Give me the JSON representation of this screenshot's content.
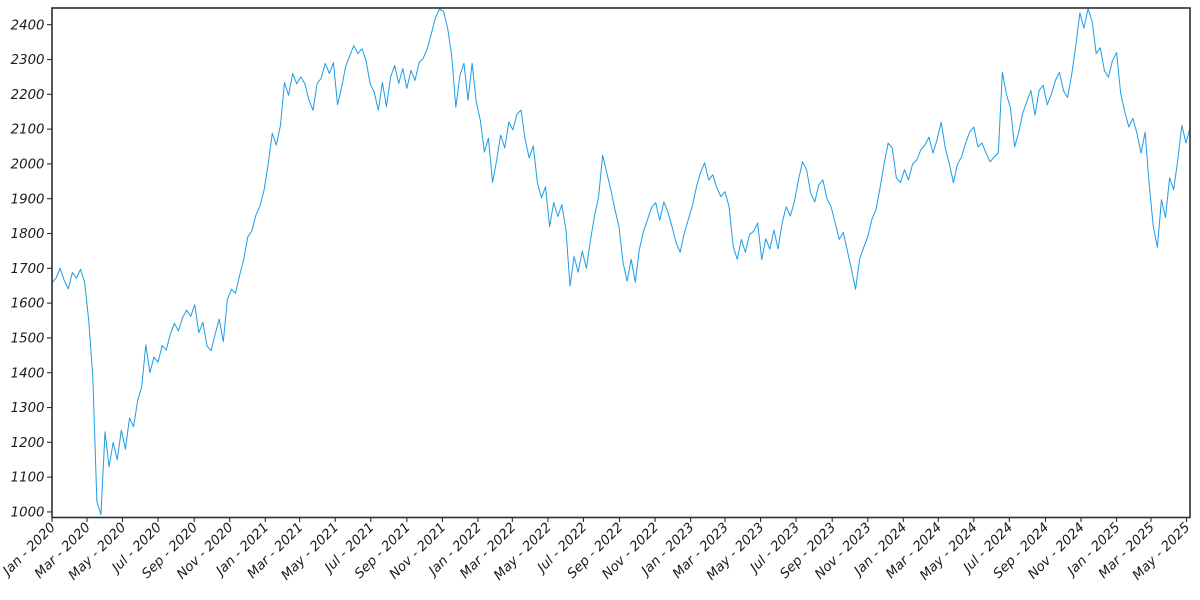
{
  "figure": {
    "background": "#ffffff",
    "spine_color": "#2e2e2e",
    "tick_color": "#2e2e2e",
    "label_color": "#1a1a1a",
    "title": ""
  },
  "chart_data": {
    "type": "line",
    "title": "",
    "xlabel": "",
    "ylabel": "",
    "grid": false,
    "legend": "none",
    "line_color": "#1e9ce6",
    "line_width": 1,
    "ylim": [
      984,
      2448
    ],
    "y_ticks": [
      1000,
      1100,
      1200,
      1300,
      1400,
      1500,
      1600,
      1700,
      1800,
      1900,
      2000,
      2100,
      2200,
      2300,
      2400
    ],
    "x_ticks": [
      {
        "label": "Jan - 2020",
        "date": "2020-01-01"
      },
      {
        "label": "Mar - 2020",
        "date": "2020-03-01"
      },
      {
        "label": "May - 2020",
        "date": "2020-05-01"
      },
      {
        "label": "Jul - 2020",
        "date": "2020-07-01"
      },
      {
        "label": "Sep - 2020",
        "date": "2020-09-01"
      },
      {
        "label": "Nov - 2020",
        "date": "2020-11-01"
      },
      {
        "label": "Jan - 2021",
        "date": "2021-01-01"
      },
      {
        "label": "Mar - 2021",
        "date": "2021-03-01"
      },
      {
        "label": "May - 2021",
        "date": "2021-05-01"
      },
      {
        "label": "Jul - 2021",
        "date": "2021-07-01"
      },
      {
        "label": "Sep - 2021",
        "date": "2021-09-01"
      },
      {
        "label": "Nov - 2021",
        "date": "2021-11-01"
      },
      {
        "label": "Jan - 2022",
        "date": "2022-01-01"
      },
      {
        "label": "Mar - 2022",
        "date": "2022-03-01"
      },
      {
        "label": "May - 2022",
        "date": "2022-05-01"
      },
      {
        "label": "Jul - 2022",
        "date": "2022-07-01"
      },
      {
        "label": "Sep - 2022",
        "date": "2022-09-01"
      },
      {
        "label": "Nov - 2022",
        "date": "2022-11-01"
      },
      {
        "label": "Jan - 2023",
        "date": "2023-01-01"
      },
      {
        "label": "Mar - 2023",
        "date": "2023-03-01"
      },
      {
        "label": "May - 2023",
        "date": "2023-05-01"
      },
      {
        "label": "Jul - 2023",
        "date": "2023-07-01"
      },
      {
        "label": "Sep - 2023",
        "date": "2023-09-01"
      },
      {
        "label": "Nov - 2023",
        "date": "2023-11-01"
      },
      {
        "label": "Jan - 2024",
        "date": "2024-01-01"
      },
      {
        "label": "Mar - 2024",
        "date": "2024-03-01"
      },
      {
        "label": "May - 2024",
        "date": "2024-05-01"
      },
      {
        "label": "Jul - 2024",
        "date": "2024-07-01"
      },
      {
        "label": "Sep - 2024",
        "date": "2024-09-01"
      },
      {
        "label": "Nov - 2024",
        "date": "2024-11-01"
      },
      {
        "label": "Jan - 2025",
        "date": "2025-01-01"
      },
      {
        "label": "Mar - 2025",
        "date": "2025-03-01"
      },
      {
        "label": "May - 2025",
        "date": "2025-05-01"
      }
    ],
    "series": [
      {
        "name": "value",
        "start_date": "2020-01-01",
        "step_days": 7,
        "values": [
          1658,
          1672,
          1700,
          1665,
          1641,
          1688,
          1672,
          1697,
          1660,
          1550,
          1390,
          1030,
          992,
          1230,
          1130,
          1200,
          1150,
          1235,
          1180,
          1270,
          1245,
          1320,
          1360,
          1480,
          1400,
          1445,
          1430,
          1478,
          1465,
          1510,
          1542,
          1520,
          1558,
          1580,
          1562,
          1595,
          1515,
          1545,
          1477,
          1463,
          1511,
          1554,
          1489,
          1611,
          1640,
          1628,
          1680,
          1725,
          1790,
          1808,
          1853,
          1880,
          1925,
          2000,
          2088,
          2054,
          2110,
          2234,
          2197,
          2260,
          2230,
          2250,
          2230,
          2183,
          2154,
          2231,
          2246,
          2289,
          2260,
          2291,
          2170,
          2220,
          2280,
          2311,
          2340,
          2317,
          2331,
          2297,
          2230,
          2206,
          2154,
          2234,
          2165,
          2249,
          2283,
          2231,
          2274,
          2217,
          2269,
          2240,
          2291,
          2303,
          2331,
          2374,
          2420,
          2445,
          2438,
          2390,
          2310,
          2163,
          2254,
          2289,
          2183,
          2289,
          2180,
          2126,
          2034,
          2074,
          1947,
          2010,
          2083,
          2046,
          2120,
          2098,
          2143,
          2155,
          2069,
          2017,
          2052,
          1946,
          1903,
          1934,
          1820,
          1889,
          1849,
          1883,
          1811,
          1649,
          1734,
          1689,
          1749,
          1700,
          1780,
          1850,
          1905,
          2025,
          1975,
          1926,
          1870,
          1820,
          1717,
          1663,
          1726,
          1660,
          1754,
          1805,
          1840,
          1875,
          1889,
          1838,
          1891,
          1862,
          1820,
          1774,
          1746,
          1800,
          1840,
          1880,
          1934,
          1975,
          2003,
          1954,
          1969,
          1931,
          1906,
          1920,
          1877,
          1763,
          1726,
          1783,
          1746,
          1797,
          1806,
          1830,
          1725,
          1785,
          1755,
          1810,
          1756,
          1830,
          1877,
          1850,
          1891,
          1954,
          2006,
          1983,
          1917,
          1891,
          1940,
          1954,
          1900,
          1877,
          1831,
          1783,
          1803,
          1750,
          1697,
          1640,
          1726,
          1760,
          1791,
          1840,
          1868,
          1930,
          2000,
          2060,
          2046,
          1960,
          1946,
          1983,
          1954,
          2000,
          2011,
          2040,
          2054,
          2077,
          2031,
          2070,
          2120,
          2046,
          2000,
          1946,
          2000,
          2020,
          2060,
          2092,
          2106,
          2049,
          2060,
          2031,
          2006,
          2020,
          2031,
          2263,
          2200,
          2160,
          2049,
          2090,
          2146,
          2180,
          2211,
          2140,
          2211,
          2226,
          2170,
          2200,
          2240,
          2263,
          2210,
          2191,
          2257,
          2340,
          2434,
          2390,
          2446,
          2410,
          2317,
          2334,
          2269,
          2249,
          2297,
          2320,
          2203,
          2150,
          2106,
          2131,
          2088,
          2031,
          2091,
          1940,
          1820,
          1760,
          1897,
          1846,
          1960,
          1926,
          2011,
          2111,
          2060,
          2103
        ]
      }
    ]
  }
}
